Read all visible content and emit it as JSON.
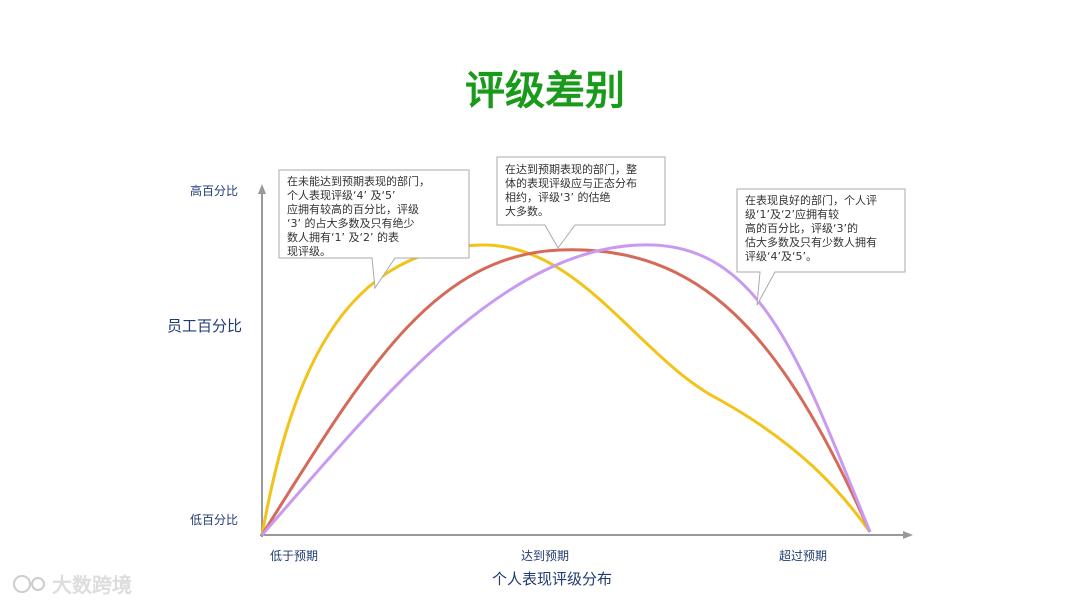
{
  "title": "评级差别",
  "y_axis": {
    "high": "高百分比",
    "low": "低百分比",
    "label": "员工百分比"
  },
  "x_axis": {
    "categories": [
      "低于预期",
      "达到预期",
      "超过预期"
    ],
    "label": "个人表现评级分布"
  },
  "callouts": [
    {
      "lines": [
        "在未能达到预期表现的部门，",
        "个人表现评级‘4’ 及‘5’",
        "应拥有较高的百分比，评级",
        "‘3’ 的占大多数及只有绝少",
        "数人拥有‘1’ 及‘2’ 的表",
        "现评级。"
      ]
    },
    {
      "lines": [
        "在达到预期表现的部门，整",
        "体的表现评级应与正态分布",
        "相约，评级‘3’ 的估绝",
        "大多数。"
      ]
    },
    {
      "lines": [
        "在表现良好的部门，个人评",
        "级‘1’及‘2’应拥有较",
        "高的百分比，评级‘3’的",
        "估大多数及只有少数人拥有",
        "评级‘4’及‘5’。"
      ]
    }
  ],
  "watermark": "大数跨境"
}
